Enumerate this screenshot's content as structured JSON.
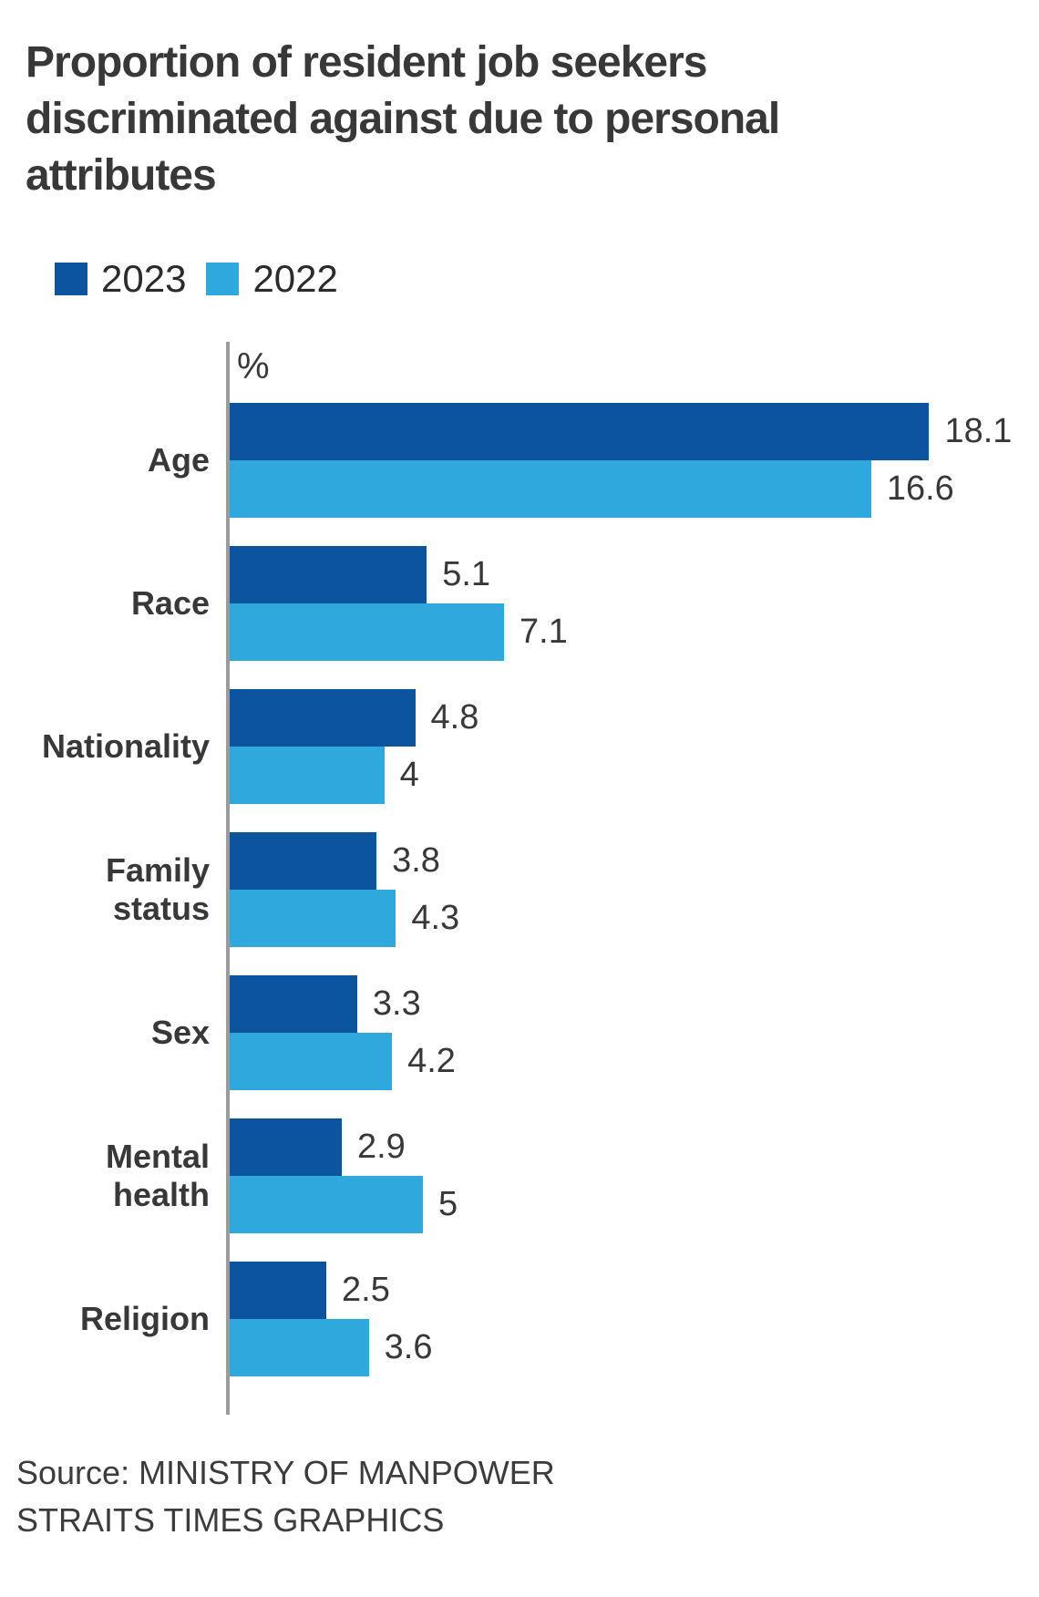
{
  "title_lines": [
    "Proportion of resident job seekers",
    "discriminated against due to personal",
    "attributes"
  ],
  "legend": [
    {
      "label": "2023",
      "color": "#0d549e"
    },
    {
      "label": "2022",
      "color": "#2fa9dd"
    }
  ],
  "chart_data": {
    "type": "bar",
    "orientation": "horizontal",
    "axis_label": "%",
    "grid": false,
    "legend_position": "top-left",
    "xlim": [
      0,
      20
    ],
    "categories": [
      "Age",
      "Race",
      "Nationality",
      "Family status",
      "Sex",
      "Mental health",
      "Religion"
    ],
    "category_label_lines": [
      [
        "Age"
      ],
      [
        "Race"
      ],
      [
        "Nationality"
      ],
      [
        "Family",
        "status"
      ],
      [
        "Sex"
      ],
      [
        "Mental",
        "health"
      ],
      [
        "Religion"
      ]
    ],
    "series": [
      {
        "name": "2023",
        "color": "#0d549e",
        "values": [
          18.1,
          5.1,
          4.8,
          3.8,
          3.3,
          2.9,
          2.5
        ],
        "value_labels": [
          "18.1",
          "5.1",
          "4.8",
          "3.8",
          "3.3",
          "2.9",
          "2.5"
        ]
      },
      {
        "name": "2022",
        "color": "#2fa9dd",
        "values": [
          16.6,
          7.1,
          4.0,
          4.3,
          4.2,
          5.0,
          3.6
        ],
        "value_labels": [
          "16.6",
          "7.1",
          "4",
          "4.3",
          "4.2",
          "5",
          "3.6"
        ]
      }
    ]
  },
  "source_lines": [
    "Source: MINISTRY OF MANPOWER",
    "STRAITS TIMES GRAPHICS"
  ]
}
